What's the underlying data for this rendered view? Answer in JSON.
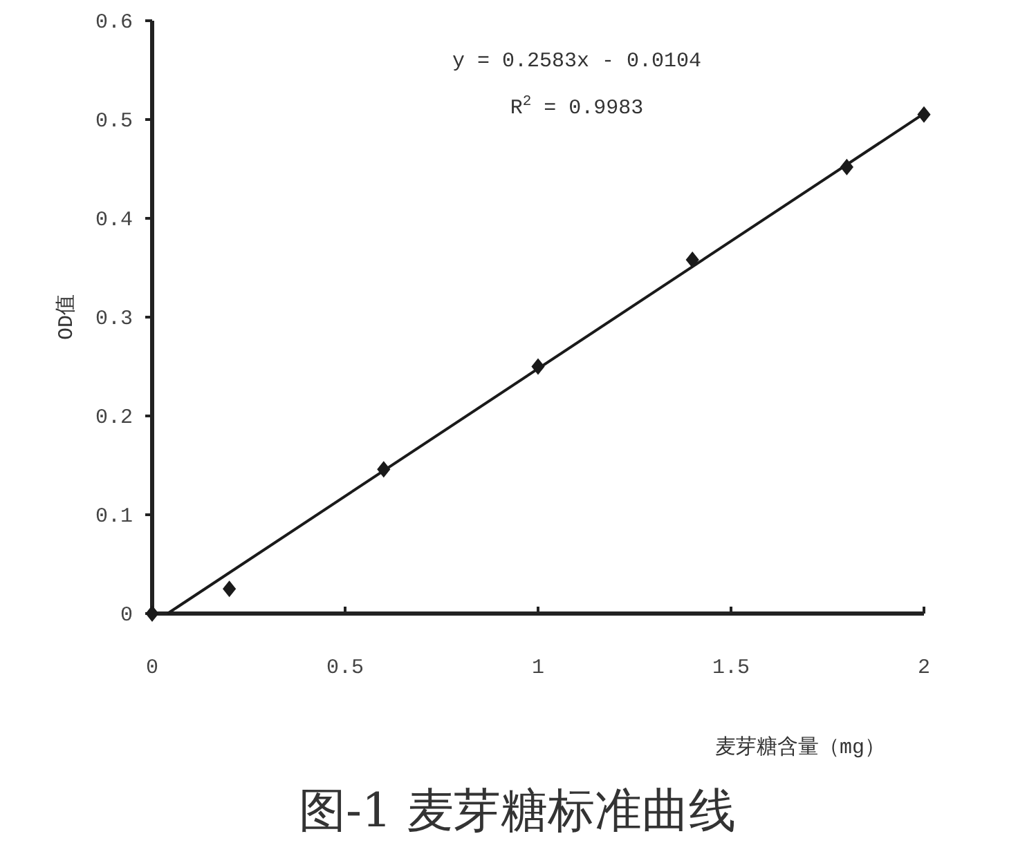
{
  "chart_data": {
    "type": "scatter",
    "title": "图-1 麦芽糖标准曲线",
    "xlabel": "麦芽糖含量（mg）",
    "ylabel": "OD值",
    "annotations": [
      "y = 0.2583x - 0.0104",
      "R$^{2}$ = 0.9983"
    ],
    "xlim": [
      0,
      2
    ],
    "ylim": [
      0,
      0.6
    ],
    "xticks": [
      0,
      0.5,
      1,
      1.5,
      2
    ],
    "yticks": [
      0,
      0.1,
      0.2,
      0.3,
      0.4,
      0.5,
      0.6
    ],
    "grid": false,
    "series": [
      {
        "color": "#1a1a1a",
        "marker": "diamond",
        "x": [
          0,
          0.2,
          0.6,
          1.0,
          1.4,
          1.8,
          2.0
        ],
        "values": [
          0,
          0.025,
          0.146,
          0.25,
          0.358,
          0.452,
          0.505
        ]
      },
      {
        "type": "line",
        "color": "#1a1a1a",
        "marker": "none",
        "line_style": "solid",
        "x": [
          0.04,
          2.0
        ],
        "values": [
          0,
          0.506
        ]
      }
    ]
  }
}
